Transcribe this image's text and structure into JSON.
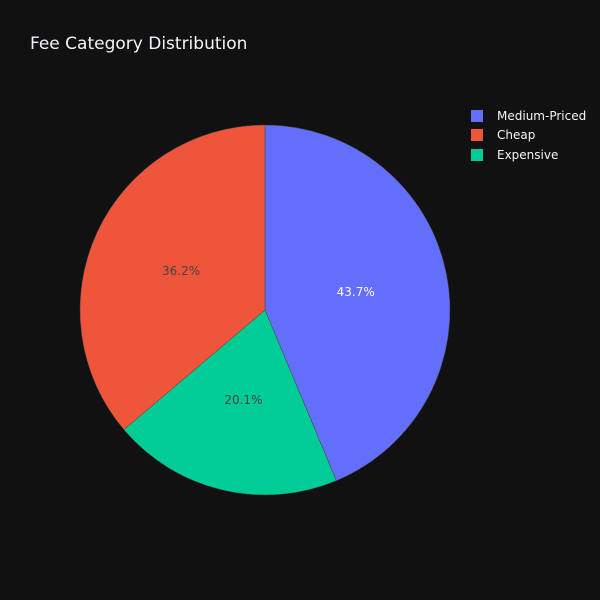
{
  "chart_data": {
    "type": "pie",
    "title": "Fee Category Distribution",
    "slices": [
      {
        "label": "Medium-Priced",
        "percent": 43.7,
        "color": "#636efa",
        "label_color": "#ffffff"
      },
      {
        "label": "Expensive",
        "percent": 20.1,
        "color": "#00cc96",
        "label_color": "#444444"
      },
      {
        "label": "Cheap",
        "percent": 36.2,
        "color": "#ef553b",
        "label_color": "#444444"
      }
    ],
    "legend": {
      "placement": "top-right",
      "entries": [
        {
          "label": "Medium-Priced",
          "color": "#636efa"
        },
        {
          "label": "Cheap",
          "color": "#ef553b"
        },
        {
          "label": "Expensive",
          "color": "#00cc96"
        }
      ]
    },
    "direction": "clockwise",
    "start": "top"
  },
  "theme": {
    "background": "#111111",
    "text": "#f2f5fa",
    "slice_border": "#444444"
  }
}
